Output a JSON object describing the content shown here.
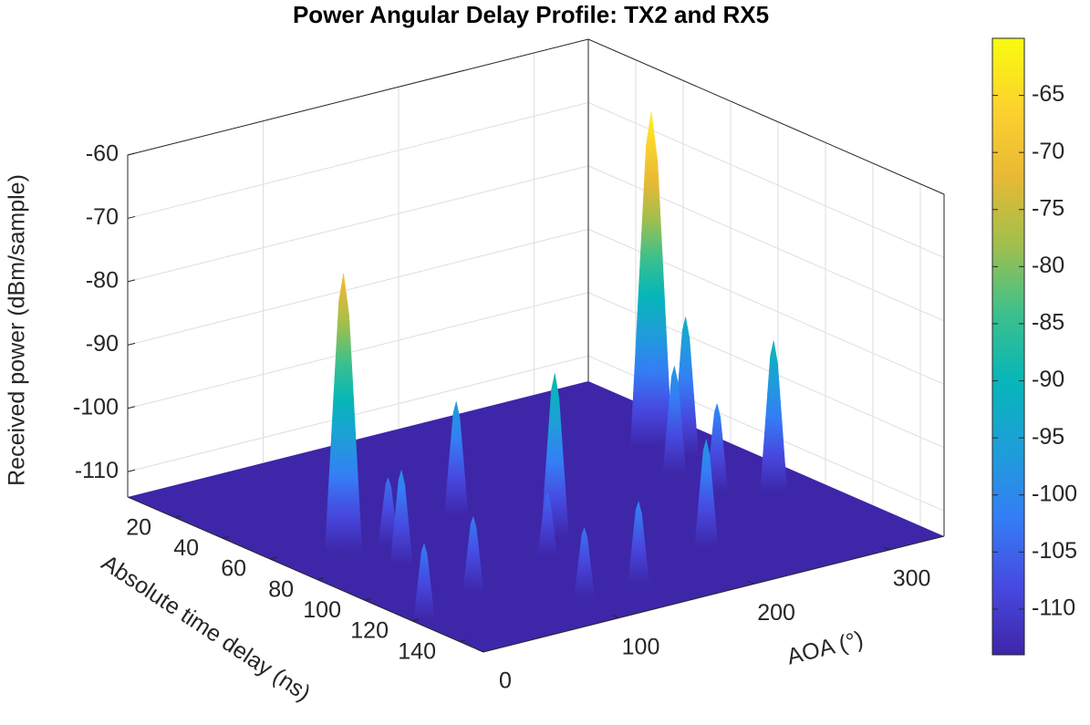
{
  "chart_data": {
    "type": "surface3d",
    "title": "Power Angular Delay Profile: TX2 and RX5",
    "x_label": "Absolute time delay (ns)",
    "y_label": "AOA (°)",
    "z_label": "Received power (dBm/sample)",
    "xlim": [
      0,
      150
    ],
    "xticks": [
      20,
      40,
      60,
      80,
      100,
      120,
      140
    ],
    "ylim": [
      0,
      340
    ],
    "yticks": [
      0,
      100,
      200,
      300
    ],
    "zlim": [
      -114,
      -60
    ],
    "zticks": [
      -60,
      -70,
      -80,
      -90,
      -100,
      -110
    ],
    "clim": [
      -114,
      -60
    ],
    "cticks": [
      -65,
      -70,
      -75,
      -80,
      -85,
      -90,
      -95,
      -100,
      -105,
      -110
    ],
    "colormap": [
      "#3e26a8",
      "#4749e0",
      "#347ef5",
      "#1e9ed8",
      "#07b6b9",
      "#3dc08b",
      "#a2bf4c",
      "#e9b935",
      "#fcd32e",
      "#f9fb0e"
    ],
    "grid": true,
    "delay": [
      67,
      50,
      62,
      91,
      97,
      61,
      120,
      132,
      132,
      112,
      121,
      84,
      71,
      101,
      88,
      70
    ],
    "aoa": [
      42,
      299,
      134,
      156,
      307,
      305,
      217,
      146,
      106,
      59,
      7,
      55,
      68,
      133,
      281,
      281
    ],
    "values": [
      -70,
      -61,
      -96,
      -88,
      -90,
      -92,
      -97,
      -101,
      -103,
      -102,
      -102,
      -99,
      -103,
      -104,
      -100,
      -97
    ]
  }
}
